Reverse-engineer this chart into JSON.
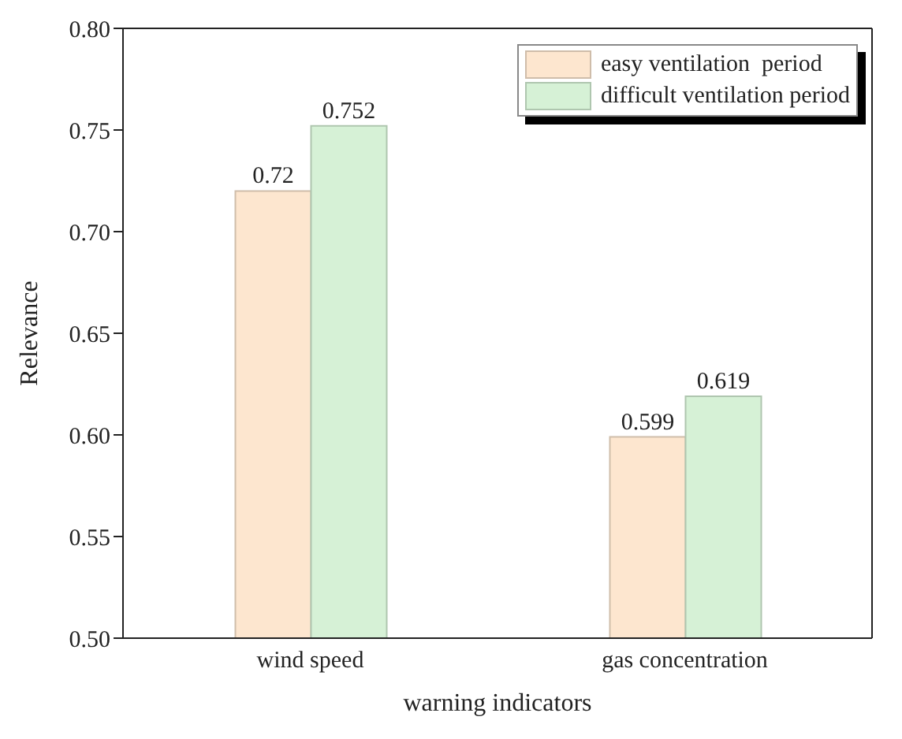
{
  "chart_data": {
    "type": "bar",
    "xlabel": "warning indicators",
    "ylabel": "Relevance",
    "categories": [
      "wind speed",
      "gas concentration"
    ],
    "series": [
      {
        "name": "easy ventilation  period",
        "color": "#fde6cf",
        "values": [
          0.72,
          0.599
        ]
      },
      {
        "name": "difficult ventilation period",
        "color": "#d6f1d6",
        "values": [
          0.752,
          0.619
        ]
      }
    ],
    "ylim": [
      0.5,
      0.8
    ],
    "yticks": [
      {
        "value": 0.5,
        "label": "0.50"
      },
      0.55,
      {
        "value": 0.6,
        "label": "0.60"
      },
      0.65,
      {
        "value": 0.7,
        "label": "0.70"
      },
      0.75,
      {
        "value": 0.8,
        "label": "0.80"
      }
    ],
    "data_labels": true,
    "legend": "top right",
    "grid": false
  }
}
